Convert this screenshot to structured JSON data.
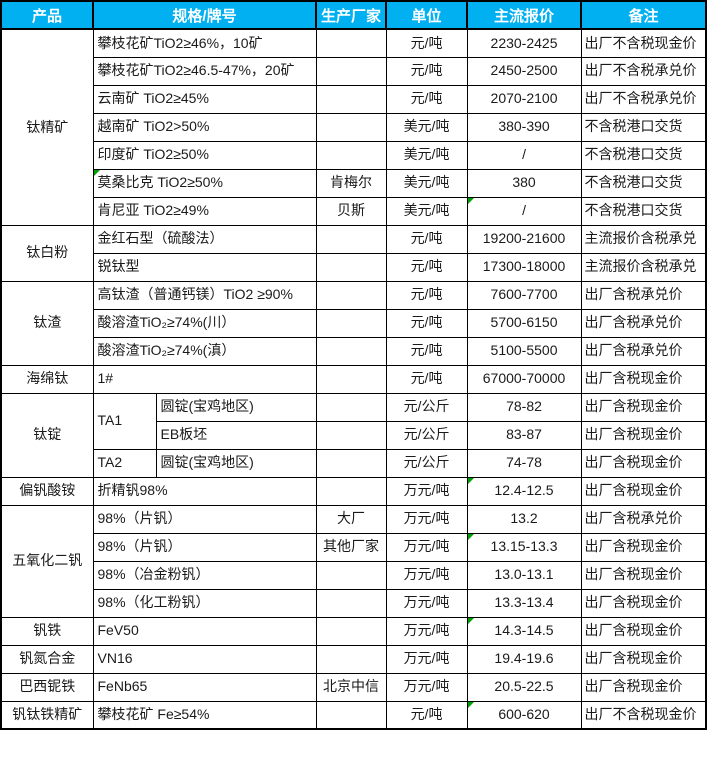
{
  "colors": {
    "header_bg": "#00B0F0",
    "header_text": "#FFFFFF",
    "grid_border": "#000000",
    "flag_green": "#00A000"
  },
  "header": {
    "columns": [
      "产品",
      "规格/牌号",
      "生产厂家",
      "单位",
      "主流报价",
      "备注"
    ]
  },
  "rows": [
    {
      "product": "钛精矿",
      "product_rowspan": 7,
      "spec": "攀枝花矿TiO2≥46%，10矿",
      "unit": "元/吨",
      "price": "2230-2425",
      "note": "出厂不含税现金价"
    },
    {
      "spec": "攀枝花矿TiO2≥46.5-47%，20矿",
      "unit": "元/吨",
      "price": "2450-2500",
      "note": "出厂不含税承兑价"
    },
    {
      "spec": "云南矿 TiO2≥45%",
      "unit": "元/吨",
      "price": "2070-2100",
      "note": "出厂不含税承兑价"
    },
    {
      "spec": "越南矿 TiO2>50%",
      "unit": "美元/吨",
      "price": "380-390",
      "note": "不含税港口交货"
    },
    {
      "spec": "印度矿 TiO2≥50%",
      "unit": "美元/吨",
      "price": "/",
      "note": "不含税港口交货"
    },
    {
      "spec": "莫桑比克 TiO2≥50%",
      "flag_spec": true,
      "mfr": "肯梅尔",
      "unit": "美元/吨",
      "price": "380",
      "note": "不含税港口交货"
    },
    {
      "spec": "肯尼亚 TiO2≥49%",
      "mfr": "贝斯",
      "unit": "美元/吨",
      "price": "/",
      "flag_price": true,
      "note": "不含税港口交货"
    },
    {
      "product": "钛白粉",
      "product_rowspan": 2,
      "spec": "金红石型（硫酸法）",
      "unit": "元/吨",
      "price": "19200-21600",
      "note": "主流报价含税承兑"
    },
    {
      "spec": "锐钛型",
      "unit": "元/吨",
      "price": "17300-18000",
      "note": "主流报价含税承兑"
    },
    {
      "product": "钛渣",
      "product_rowspan": 3,
      "spec": "高钛渣（普通钙镁）TiO2 ≥90%",
      "unit": "元/吨",
      "price": "7600-7700",
      "note": "出厂含税承兑价"
    },
    {
      "spec": "酸溶渣TiO₂≥74%(川）",
      "unit": "元/吨",
      "price": "5700-6150",
      "note": "出厂含税承兑价"
    },
    {
      "spec": "酸溶渣TiO₂≥74%(滇）",
      "unit": "元/吨",
      "price": "5100-5500",
      "note": "出厂含税承兑价"
    },
    {
      "product": "海绵钛",
      "product_rowspan": 1,
      "spec": "1#",
      "unit": "元/吨",
      "price": "67000-70000",
      "note": "出厂含税现金价"
    },
    {
      "product": "钛锭",
      "product_rowspan": 3,
      "spec": "TA1",
      "spec_rowspan": 2,
      "spec2": "圆锭(宝鸡地区)",
      "unit": "元/公斤",
      "price": "78-82",
      "note": "出厂含税现金价"
    },
    {
      "spec2": "EB板坯",
      "unit": "元/公斤",
      "price": "83-87",
      "note": "出厂含税现金价"
    },
    {
      "spec": "TA2",
      "spec_rowspan": 1,
      "spec2": "圆锭(宝鸡地区)",
      "unit": "元/公斤",
      "price": "74-78",
      "note": "出厂含税现金价"
    },
    {
      "product": "偏钒酸铵",
      "product_rowspan": 1,
      "spec": "折精钒98%",
      "unit": "万元/吨",
      "price": "12.4-12.5",
      "flag_price": true,
      "note": "出厂含税现金价"
    },
    {
      "product": "五氧化二钒",
      "product_rowspan": 4,
      "spec": "98%（片钒）",
      "mfr": "大厂",
      "unit": "万元/吨",
      "price": "13.2",
      "note": "出厂含税承兑价"
    },
    {
      "spec": "98%（片钒）",
      "mfr": "其他厂家",
      "unit": "万元/吨",
      "price": "13.15-13.3",
      "flag_price": true,
      "note": "出厂含税现金价"
    },
    {
      "spec": "98%（冶金粉钒）",
      "unit": "万元/吨",
      "price": "13.0-13.1",
      "note": "出厂含税现金价"
    },
    {
      "spec": "98%（化工粉钒）",
      "unit": "万元/吨",
      "price": "13.3-13.4",
      "note": "出厂含税现金价"
    },
    {
      "product": "钒铁",
      "product_rowspan": 1,
      "spec": "FeV50",
      "unit": "万元/吨",
      "price": "14.3-14.5",
      "flag_price": true,
      "note": "出厂含税现金价"
    },
    {
      "product": "钒氮合金",
      "product_rowspan": 1,
      "spec": "VN16",
      "unit": "万元/吨",
      "price": "19.4-19.6",
      "note": "出厂含税现金价"
    },
    {
      "product": "巴西铌铁",
      "product_rowspan": 1,
      "spec": "FeNb65",
      "mfr": "北京中信",
      "unit": "万元/吨",
      "price": "20.5-22.5",
      "note": "出厂含税现金价"
    },
    {
      "product": "钒钛铁精矿",
      "product_rowspan": 1,
      "spec": "攀枝花矿 Fe≥54%",
      "unit": "元/吨",
      "price": "600-620",
      "flag_price": true,
      "note": "出厂不含税现金价"
    }
  ]
}
